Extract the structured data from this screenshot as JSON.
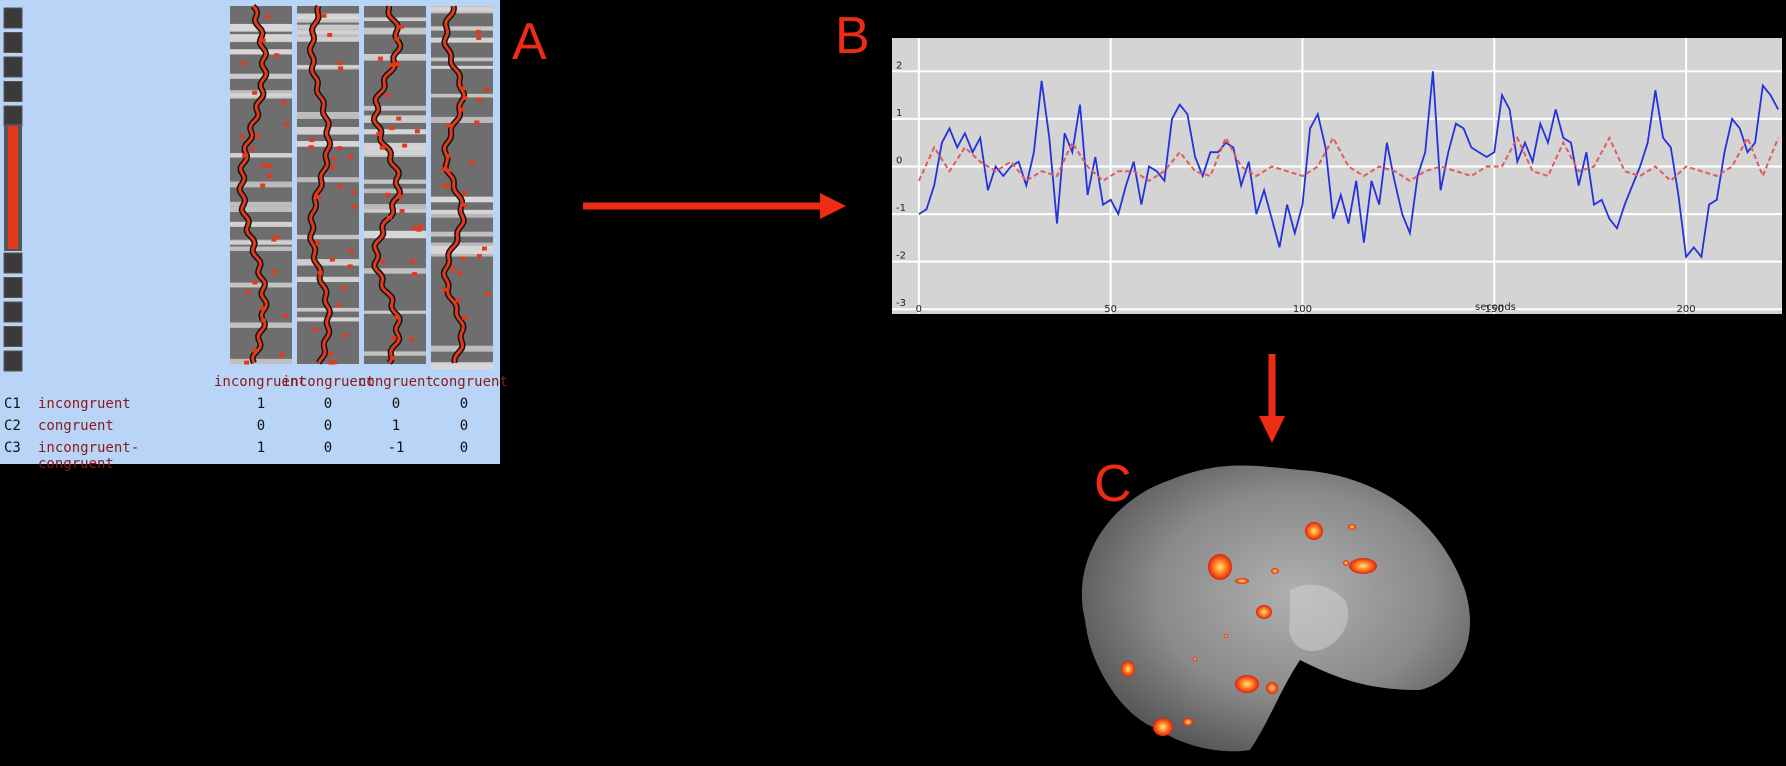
{
  "labels": {
    "a": "A",
    "b": "B",
    "c": "C"
  },
  "design_matrix": {
    "column_headers": [
      "incongruent",
      "incongruent",
      "congruent",
      "congruent"
    ],
    "contrasts": [
      {
        "id": "C1",
        "name": "incongruent",
        "weights": [
          "1",
          "0",
          "0",
          "0"
        ]
      },
      {
        "id": "C2",
        "name": "congruent",
        "weights": [
          "0",
          "0",
          "1",
          "0"
        ]
      },
      {
        "id": "C3",
        "name": "incongruent-congruent",
        "weights": [
          "1",
          "0",
          "-1",
          "0"
        ]
      }
    ]
  },
  "chart_data": {
    "type": "line",
    "xlabel": "seconds",
    "ylabel": "",
    "xlim": [
      -7,
      225
    ],
    "ylim": [
      -3.1,
      2.7
    ],
    "xticks": [
      0,
      50,
      100,
      150,
      200
    ],
    "yticks": [
      -3,
      -2,
      -1,
      0,
      1,
      2
    ],
    "grid": true,
    "series": [
      {
        "style": "solid",
        "color": "#2233dd",
        "x": [
          0,
          2,
          4,
          6,
          8,
          10,
          12,
          14,
          16,
          18,
          20,
          22,
          24,
          26,
          28,
          30,
          32,
          34,
          36,
          38,
          40,
          42,
          44,
          46,
          48,
          50,
          52,
          54,
          56,
          58,
          60,
          62,
          64,
          66,
          68,
          70,
          72,
          74,
          76,
          78,
          80,
          82,
          84,
          86,
          88,
          90,
          92,
          94,
          96,
          98,
          100,
          102,
          104,
          106,
          108,
          110,
          112,
          114,
          116,
          118,
          120,
          122,
          124,
          126,
          128,
          130,
          132,
          134,
          136,
          138,
          140,
          142,
          144,
          146,
          148,
          150,
          152,
          154,
          156,
          158,
          160,
          162,
          164,
          166,
          168,
          170,
          172,
          174,
          176,
          178,
          180,
          182,
          184,
          186,
          188,
          190,
          192,
          194,
          196,
          198,
          200,
          202,
          204,
          206,
          208,
          210,
          212,
          214,
          216,
          218,
          220,
          222,
          224
        ],
        "y": [
          -1.0,
          -0.9,
          -0.4,
          0.5,
          0.8,
          0.4,
          0.7,
          0.3,
          0.6,
          -0.5,
          0.0,
          -0.2,
          0.0,
          0.1,
          -0.4,
          0.3,
          1.8,
          0.6,
          -1.2,
          0.7,
          0.3,
          1.3,
          -0.6,
          0.2,
          -0.8,
          -0.7,
          -1.0,
          -0.4,
          0.1,
          -0.8,
          0.0,
          -0.1,
          -0.3,
          1.0,
          1.3,
          1.1,
          0.2,
          -0.2,
          0.3,
          0.3,
          0.5,
          0.4,
          -0.4,
          0.1,
          -1.0,
          -0.5,
          -1.1,
          -1.7,
          -0.8,
          -1.4,
          -0.8,
          0.8,
          1.1,
          0.4,
          -1.1,
          -0.6,
          -1.2,
          -0.3,
          -1.6,
          -0.3,
          -0.8,
          0.5,
          -0.3,
          -1.0,
          -1.4,
          -0.2,
          0.3,
          2.0,
          -0.5,
          0.3,
          0.9,
          0.8,
          0.4,
          0.3,
          0.2,
          0.3,
          1.5,
          1.2,
          0.1,
          0.5,
          0.1,
          0.9,
          0.5,
          1.2,
          0.6,
          0.5,
          -0.4,
          0.3,
          -0.8,
          -0.7,
          -1.1,
          -1.3,
          -0.8,
          -0.4,
          0.0,
          0.5,
          1.6,
          0.6,
          0.4,
          -0.6,
          -1.9,
          -1.7,
          -1.9,
          -0.8,
          -0.7,
          0.3,
          1.0,
          0.8,
          0.3,
          0.5,
          1.7,
          1.5,
          1.2
        ]
      },
      {
        "style": "dashed",
        "color": "#e35a5a",
        "x": [
          0,
          4,
          8,
          12,
          16,
          20,
          24,
          28,
          32,
          36,
          40,
          44,
          48,
          52,
          56,
          60,
          64,
          68,
          72,
          76,
          80,
          84,
          88,
          92,
          96,
          100,
          104,
          108,
          112,
          116,
          120,
          124,
          128,
          132,
          136,
          140,
          144,
          148,
          152,
          156,
          160,
          164,
          168,
          172,
          176,
          180,
          184,
          188,
          192,
          196,
          200,
          204,
          208,
          212,
          216,
          220,
          224
        ],
        "y": [
          -0.3,
          0.4,
          -0.1,
          0.4,
          0.1,
          -0.1,
          0.1,
          -0.3,
          -0.1,
          -0.2,
          0.5,
          0.0,
          -0.3,
          -0.1,
          -0.1,
          -0.3,
          -0.1,
          0.3,
          -0.1,
          -0.2,
          0.6,
          0.0,
          -0.2,
          0.0,
          -0.1,
          -0.2,
          0.0,
          0.6,
          0.0,
          -0.2,
          0.0,
          -0.1,
          -0.3,
          -0.1,
          0.0,
          -0.1,
          -0.2,
          0.0,
          0.0,
          0.6,
          -0.1,
          -0.2,
          0.5,
          -0.1,
          0.0,
          0.6,
          -0.1,
          -0.2,
          0.0,
          -0.3,
          0.0,
          -0.1,
          -0.2,
          0.0,
          0.6,
          -0.2,
          0.6
        ]
      }
    ]
  }
}
